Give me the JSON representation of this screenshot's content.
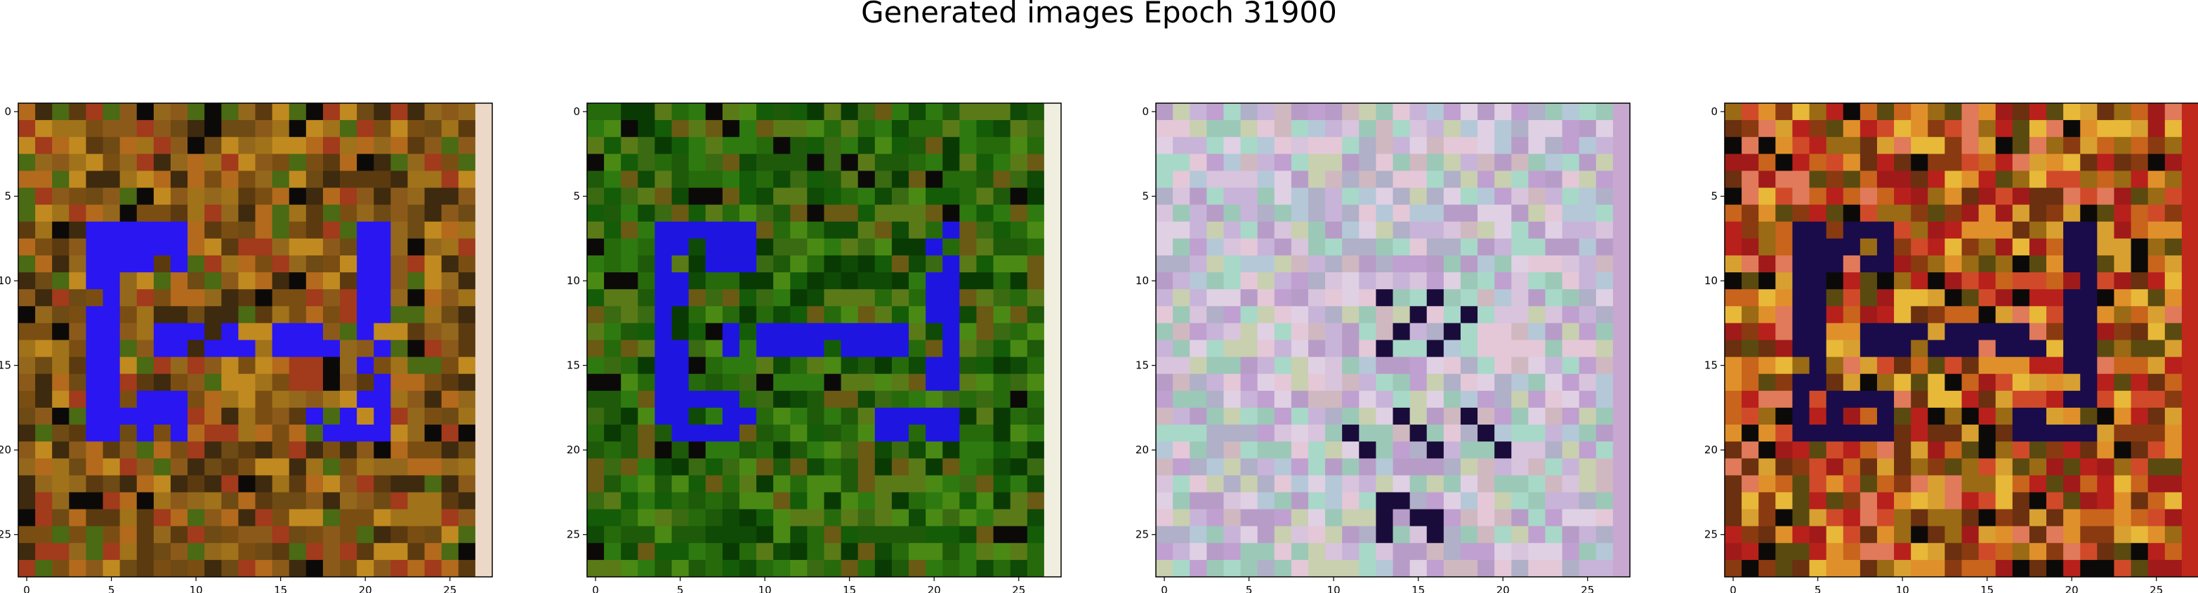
{
  "figure": {
    "title": "Generated images Epoch 31900"
  },
  "chart_data": [
    {
      "type": "heatmap",
      "title": "",
      "description_type": "rgb-image",
      "grid_size": [
        28,
        28
      ],
      "xlim": [
        -0.5,
        27.5
      ],
      "ylim": [
        27.5,
        -0.5
      ],
      "xticks": [
        0,
        5,
        10,
        15,
        20,
        25
      ],
      "yticks": [
        0,
        5,
        10,
        15,
        20,
        25
      ],
      "palette": [
        "#7a4e12",
        "#a0721a",
        "#5c3a10",
        "#8b5a1a",
        "#c08a20",
        "#6e4a14",
        "#94681c",
        "#3e2a0e",
        "#b36a1c",
        "#4a6a14",
        "#a23a1c"
      ],
      "overlay_color": "#2a16f0",
      "right_column_color": "#ecd8c6",
      "overlay_cells": "blue letter-like pattern rows 7-19, cols 4-21"
    },
    {
      "type": "heatmap",
      "title": "",
      "description_type": "rgb-image",
      "grid_size": [
        28,
        28
      ],
      "xlim": [
        -0.5,
        27.5
      ],
      "ylim": [
        27.5,
        -0.5
      ],
      "xticks": [
        0,
        5,
        10,
        15,
        20,
        25
      ],
      "yticks": [
        0,
        5,
        10,
        15,
        20,
        25
      ],
      "palette": [
        "#1e5a0a",
        "#2e7a10",
        "#0f4a06",
        "#3a6a12",
        "#5a7a18",
        "#145c08",
        "#0a3a04",
        "#4a8a14",
        "#266a0c",
        "#6a5a14"
      ],
      "overlay_color": "#1e16e0",
      "right_column_color": "#f0eede",
      "overlay_cells": "blue pattern rows 7-19, cols 4-21"
    },
    {
      "type": "heatmap",
      "title": "",
      "description_type": "rgb-image",
      "grid_size": [
        28,
        28
      ],
      "xlim": [
        -0.5,
        27.5
      ],
      "ylim": [
        27.5,
        -0.5
      ],
      "xticks": [
        0,
        5,
        10,
        15,
        20,
        25
      ],
      "yticks": [
        0,
        5,
        10,
        15,
        20,
        25
      ],
      "palette": [
        "#c8b4d8",
        "#d8c4dc",
        "#b4c8d8",
        "#e0d0e4",
        "#a8d8c8",
        "#c0a0d0",
        "#d0b8c0",
        "#b0b0c8",
        "#e4c8d8",
        "#9cc8b8",
        "#c8d0b0",
        "#b89cc8"
      ],
      "overlay_color": "#1a0c3a",
      "right_column_color": "#c8a8d0",
      "overlay_cells": "dark pattern rows 11-26, cols 7-21"
    },
    {
      "type": "heatmap",
      "title": "",
      "description_type": "rgb-image",
      "grid_size": [
        28,
        28
      ],
      "xlim": [
        -0.5,
        27.5
      ],
      "ylim": [
        27.5,
        -0.5
      ],
      "xticks": [
        0,
        5,
        10,
        15,
        20,
        25
      ],
      "yticks": [
        0,
        5,
        10,
        15,
        20,
        25
      ],
      "palette": [
        "#c8641c",
        "#e0902a",
        "#a01a1a",
        "#d04a2a",
        "#8a3a10",
        "#e8b838",
        "#6a3010",
        "#b8201c",
        "#d8a030",
        "#5a4a10",
        "#e07a5a",
        "#9a6a14"
      ],
      "overlay_color": "#1a0c4a",
      "right_column_color": "#c0281c",
      "overlay_cells": "dark blue pattern rows 7-19, cols 4-21"
    }
  ]
}
